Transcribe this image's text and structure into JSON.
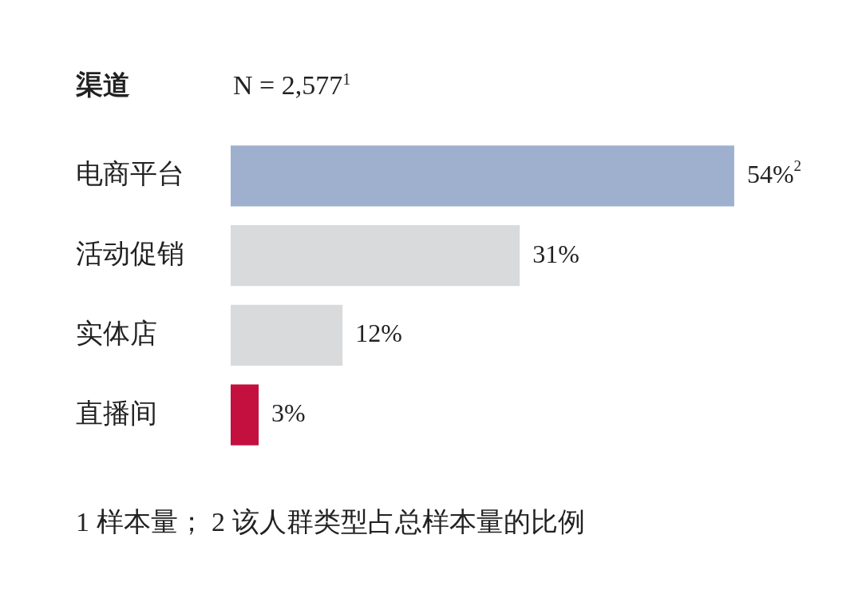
{
  "chart_data": {
    "type": "bar",
    "orientation": "horizontal",
    "subtitle": "N = 2,577$^{1}$",
    "ylabel": "渠道",
    "categories": [
      "电商平台",
      "活动促销",
      "实体店",
      "直播间"
    ],
    "values": [
      54,
      31,
      12,
      3
    ],
    "colors": [
      "#9eb0cd",
      "#d9dadb",
      "#d9dadb",
      "#c3103f"
    ],
    "value_labels": [
      "54%$^{2}$",
      "31%",
      "12%",
      "3%"
    ],
    "tick_labels": "y",
    "legend": false,
    "annotations": [
      "1 样本量； 2 该人群类型占总样本量的比例"
    ]
  }
}
